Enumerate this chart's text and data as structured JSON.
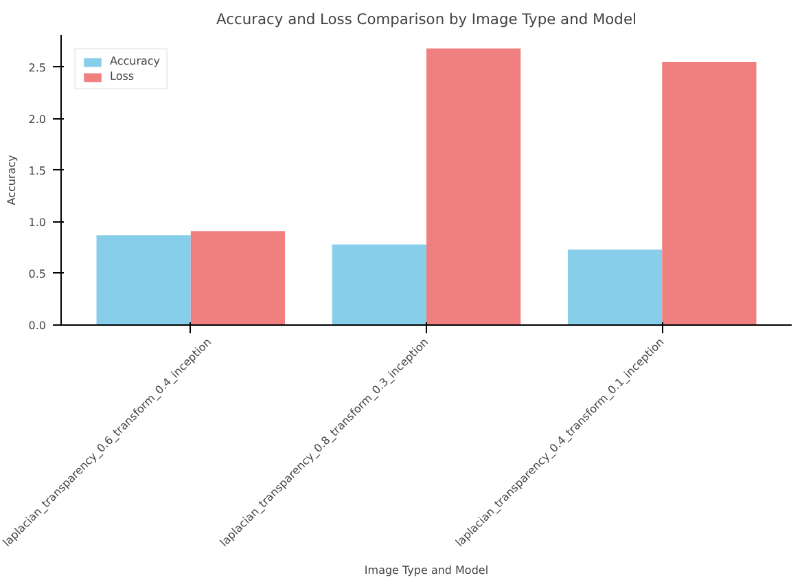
{
  "chart_data": {
    "type": "bar",
    "title": "Accuracy and Loss Comparison by Image Type and Model",
    "xlabel": "Image Type and Model",
    "ylabel": "Accuracy",
    "categories": [
      "laplacian_transparency_0.6_transform_0.4_inception",
      "laplacian_transparency_0.8_transform_0.3_inception",
      "laplacian_transparency_0.4_transform_0.1_inception"
    ],
    "series": [
      {
        "name": "Accuracy",
        "color": "#87ceeb",
        "values": [
          0.87,
          0.78,
          0.73
        ]
      },
      {
        "name": "Loss",
        "color": "#f08080",
        "values": [
          0.91,
          2.68,
          2.55
        ]
      }
    ],
    "ylim": [
      0,
      2.81
    ],
    "yticks": [
      {
        "value": 0,
        "label": "0.0"
      },
      {
        "value": 0.5,
        "label": "0.5"
      },
      {
        "value": 1,
        "label": "1.0"
      },
      {
        "value": 1.5,
        "label": "1.5"
      },
      {
        "value": 2,
        "label": "2.0"
      },
      {
        "value": 2.5,
        "label": "2.5"
      }
    ],
    "legend": "top left",
    "grid": false
  }
}
